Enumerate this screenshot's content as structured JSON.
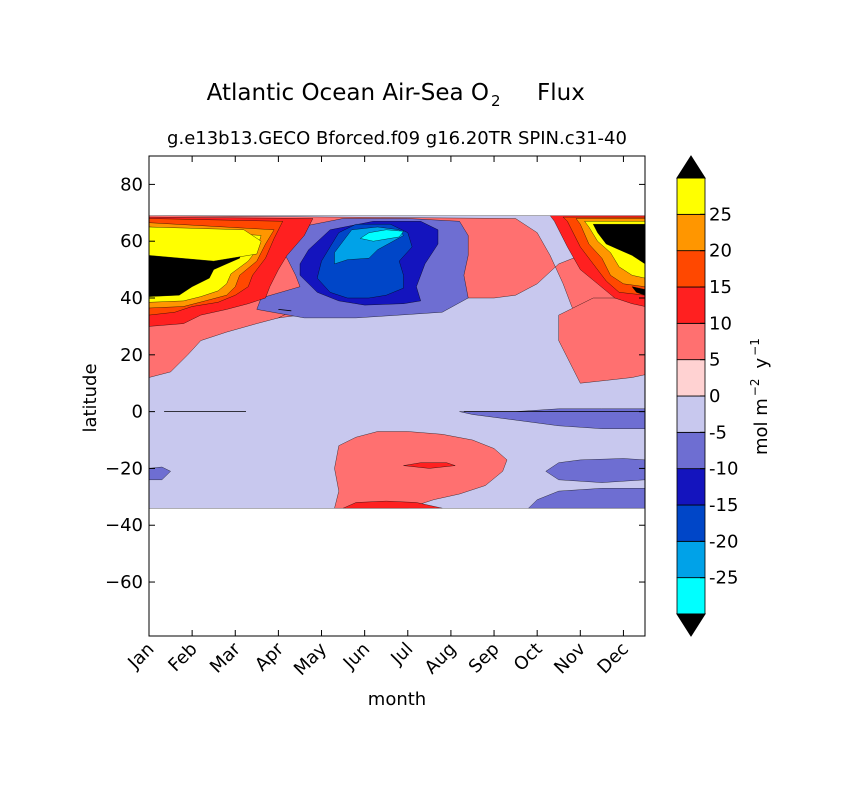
{
  "chart_data": {
    "type": "heatmap",
    "title": "Atlantic Ocean Air-Sea O",
    "title_subscript": "2",
    "title_suffix": "Flux",
    "subtitle": "g.e13b13.GECO Bforced.f09 g16.20TR SPIN.c31-40",
    "xlabel": "month",
    "ylabel": "latitude",
    "x_ticks": [
      "Jan",
      "Feb",
      "Mar",
      "Apr",
      "May",
      "Jun",
      "Jul",
      "Aug",
      "Sep",
      "Oct",
      "Nov",
      "Dec"
    ],
    "y_ticks": [
      "80",
      "60",
      "40",
      "20",
      "0",
      "−20",
      "−40",
      "−60"
    ],
    "y_tick_values": [
      80,
      60,
      40,
      20,
      0,
      -20,
      -40,
      -60
    ],
    "ylim": [
      -79,
      90
    ],
    "data_lat_range": [
      -34,
      69
    ],
    "grid": false,
    "colorbar": {
      "label": "mol m",
      "label_sup1": "−2",
      "label_mid": "y",
      "label_sup2": "−1",
      "levels": [
        -30,
        -25,
        -20,
        -15,
        -10,
        -5,
        0,
        5,
        10,
        15,
        20,
        25,
        30
      ],
      "tick_labels": [
        "-25",
        "-20",
        "-15",
        "-10",
        "-5",
        "0",
        "5",
        "10",
        "15",
        "20",
        "25"
      ],
      "tick_values": [
        -25,
        -20,
        -15,
        -10,
        -5,
        0,
        5,
        10,
        15,
        20,
        25
      ],
      "colors": [
        "#00ffff",
        "#00a2e8",
        "#0046c8",
        "#1414be",
        "#6e6ed2",
        "#c8c8ee",
        "#ffd2d2",
        "#ff7070",
        "#ff2020",
        "#ff4800",
        "#ff9600",
        "#ffff00"
      ],
      "extend_under_color": "#000000",
      "extend_over_color": "#000000"
    },
    "regions": [
      {
        "level": 5,
        "polygon": [
          [
            0,
            24
          ],
          [
            0.5,
            26
          ],
          [
            1,
            27
          ],
          [
            1.5,
            31
          ],
          [
            2.5,
            32
          ],
          [
            3.5,
            34
          ],
          [
            4,
            36
          ],
          [
            4.5,
            39
          ],
          [
            5,
            40
          ],
          [
            7,
            40
          ],
          [
            8,
            40
          ],
          [
            8.5,
            41
          ],
          [
            9,
            45
          ],
          [
            9.5,
            52
          ],
          [
            10,
            55
          ],
          [
            10.6,
            57
          ],
          [
            11.3,
            56
          ],
          [
            11.5,
            50
          ],
          [
            11.5,
            20
          ],
          [
            11,
            25
          ],
          [
            10.5,
            28
          ],
          [
            10,
            32
          ],
          [
            9.8,
            37
          ],
          [
            9.6,
            45
          ],
          [
            9.3,
            55
          ],
          [
            9,
            63
          ],
          [
            8.5,
            68
          ],
          [
            0,
            69
          ],
          [
            0,
            24
          ]
        ]
      },
      {
        "level": 5,
        "polygon": [
          [
            4.3,
            -34
          ],
          [
            4.4,
            -28
          ],
          [
            4.3,
            -20
          ],
          [
            4.4,
            -12
          ],
          [
            4.8,
            -9
          ],
          [
            5.3,
            -7
          ],
          [
            6,
            -7
          ],
          [
            6.8,
            -8
          ],
          [
            7.5,
            -10
          ],
          [
            8,
            -13
          ],
          [
            8.3,
            -17
          ],
          [
            8.2,
            -21
          ],
          [
            7.8,
            -26
          ],
          [
            7.2,
            -29
          ],
          [
            6.6,
            -31
          ],
          [
            6,
            -34
          ]
        ]
      },
      {
        "level": 5,
        "polygon": [
          [
            0,
            12
          ],
          [
            0.5,
            14
          ],
          [
            0.9,
            20
          ],
          [
            1.2,
            25
          ],
          [
            1.8,
            28
          ],
          [
            2.5,
            31
          ],
          [
            3,
            33
          ],
          [
            3.4,
            36
          ],
          [
            3.3,
            40
          ],
          [
            0,
            40
          ]
        ]
      },
      {
        "level": 5,
        "polygon": [
          [
            10,
            10
          ],
          [
            10.6,
            11
          ],
          [
            11.2,
            12
          ],
          [
            11.5,
            13
          ],
          [
            11.5,
            40
          ],
          [
            10.3,
            40
          ],
          [
            9.5,
            34
          ],
          [
            9.5,
            25
          ]
        ]
      },
      {
        "level": 10,
        "polygon": [
          [
            4.5,
            -34
          ],
          [
            4.8,
            -32
          ],
          [
            5.5,
            -31.5
          ],
          [
            6.2,
            -32
          ],
          [
            6.8,
            -34
          ]
        ]
      },
      {
        "level": 10,
        "polygon": [
          [
            5.9,
            -19
          ],
          [
            6.3,
            -18
          ],
          [
            6.9,
            -18
          ],
          [
            7.1,
            -19
          ],
          [
            6.5,
            -20
          ]
        ]
      },
      {
        "level": -5,
        "polygon": [
          [
            0,
            -20
          ],
          [
            0.3,
            -19.5
          ],
          [
            0.5,
            -21
          ],
          [
            0.3,
            -24
          ],
          [
            0,
            -24
          ]
        ]
      },
      {
        "level": -5,
        "polygon": [
          [
            9.5,
            -18
          ],
          [
            10,
            -17
          ],
          [
            11,
            -16.5
          ],
          [
            11.5,
            -17
          ],
          [
            11.5,
            -24
          ],
          [
            10.5,
            -25
          ],
          [
            9.5,
            -24
          ],
          [
            9.2,
            -21
          ]
        ]
      },
      {
        "level": -5,
        "polygon": [
          [
            9,
            -31
          ],
          [
            9.5,
            -28
          ],
          [
            10.5,
            -27
          ],
          [
            11.5,
            -27
          ],
          [
            11.5,
            -34
          ],
          [
            8.8,
            -34
          ]
        ]
      },
      {
        "level": -5,
        "polygon": [
          [
            7.2,
            0
          ],
          [
            8.5,
            0
          ],
          [
            9.5,
            1
          ],
          [
            10.5,
            1
          ],
          [
            11.5,
            1
          ],
          [
            11.5,
            -6
          ],
          [
            10.5,
            -6
          ],
          [
            9.5,
            -5
          ],
          [
            8.5,
            -3
          ],
          [
            7.5,
            -1
          ]
        ]
      },
      {
        "level": -5,
        "polygon": [
          [
            2.8,
            58
          ],
          [
            3.2,
            54
          ],
          [
            3.4,
            48
          ],
          [
            3.5,
            44
          ],
          [
            2.6,
            40
          ],
          [
            2.5,
            36
          ],
          [
            3.6,
            33
          ],
          [
            4.8,
            33
          ],
          [
            5.8,
            34
          ],
          [
            6.8,
            35
          ],
          [
            7.4,
            40
          ],
          [
            7.3,
            48
          ],
          [
            7.4,
            55
          ],
          [
            7.4,
            62
          ],
          [
            7.2,
            67
          ],
          [
            6,
            68
          ],
          [
            4.5,
            68
          ],
          [
            3.5,
            65
          ],
          [
            3,
            62
          ]
        ]
      },
      {
        "level": -10,
        "polygon": [
          [
            3.5,
            48
          ],
          [
            3.9,
            42
          ],
          [
            4.4,
            39
          ],
          [
            5,
            37.5
          ],
          [
            5.9,
            38
          ],
          [
            6.3,
            39
          ],
          [
            6.2,
            44
          ],
          [
            6.4,
            52
          ],
          [
            6.7,
            59
          ],
          [
            6.7,
            64
          ],
          [
            6.3,
            67
          ],
          [
            5.2,
            67
          ],
          [
            4.2,
            64
          ],
          [
            3.7,
            57
          ],
          [
            3.5,
            52
          ]
        ]
      },
      {
        "level": -15,
        "polygon": [
          [
            3.9,
            47
          ],
          [
            4.2,
            42
          ],
          [
            4.6,
            40
          ],
          [
            5.1,
            40
          ],
          [
            5.5,
            41
          ],
          [
            5.9,
            43.5
          ],
          [
            5.9,
            48
          ],
          [
            5.8,
            53
          ],
          [
            6.1,
            58
          ],
          [
            6,
            63
          ],
          [
            5.6,
            66
          ],
          [
            4.8,
            66
          ],
          [
            4.4,
            63
          ],
          [
            4.2,
            58
          ],
          [
            4,
            53
          ]
        ]
      },
      {
        "level": -20,
        "polygon": [
          [
            4.3,
            52
          ],
          [
            4.6,
            53.5
          ],
          [
            5.1,
            54
          ],
          [
            5.3,
            57
          ],
          [
            5.9,
            62
          ],
          [
            5.8,
            64
          ],
          [
            5.3,
            65
          ],
          [
            4.7,
            64
          ],
          [
            4.5,
            60
          ],
          [
            4.3,
            56
          ]
        ]
      },
      {
        "level": -25,
        "polygon": [
          [
            4.9,
            61
          ],
          [
            5.2,
            60
          ],
          [
            5.8,
            61.5
          ],
          [
            5.9,
            63.5
          ],
          [
            5.5,
            64
          ],
          [
            5.1,
            63
          ]
        ]
      },
      {
        "level": 10,
        "polygon": [
          [
            0,
            30
          ],
          [
            0.8,
            31
          ],
          [
            1.2,
            34
          ],
          [
            1.8,
            36
          ],
          [
            2.3,
            38
          ],
          [
            2.7,
            40
          ],
          [
            2.8,
            44
          ],
          [
            3,
            50
          ],
          [
            3.2,
            55
          ],
          [
            3.6,
            62
          ],
          [
            3.8,
            68
          ],
          [
            0,
            68.5
          ]
        ]
      },
      {
        "level": 15,
        "polygon": [
          [
            0,
            34
          ],
          [
            0.6,
            35
          ],
          [
            1,
            37
          ],
          [
            1.6,
            38.5
          ],
          [
            2,
            41
          ],
          [
            2.3,
            44
          ],
          [
            2.4,
            48
          ],
          [
            2.7,
            54
          ],
          [
            2.9,
            61
          ],
          [
            3.1,
            67
          ],
          [
            0,
            68
          ]
        ]
      },
      {
        "level": 20,
        "polygon": [
          [
            0,
            36.5
          ],
          [
            0.8,
            37
          ],
          [
            1.3,
            39
          ],
          [
            1.8,
            41
          ],
          [
            2,
            44
          ],
          [
            2.1,
            48
          ],
          [
            2.5,
            53
          ],
          [
            2.7,
            59
          ],
          [
            2.9,
            64
          ],
          [
            0,
            66.5
          ]
        ]
      },
      {
        "level": 25,
        "polygon": [
          [
            0,
            38.5
          ],
          [
            0.8,
            39
          ],
          [
            1.2,
            40.5
          ],
          [
            1.6,
            42.5
          ],
          [
            1.8,
            45
          ],
          [
            1.9,
            48.5
          ],
          [
            2.3,
            53
          ],
          [
            2.5,
            57
          ],
          [
            2.6,
            62
          ],
          [
            0,
            65
          ]
        ]
      },
      {
        "level": 30,
        "polygon": [
          [
            0,
            40.5
          ],
          [
            0.7,
            41
          ],
          [
            1,
            44
          ],
          [
            1.4,
            47
          ],
          [
            1.5,
            50
          ],
          [
            1.8,
            52
          ],
          [
            2.1,
            54
          ],
          [
            2.2,
            58
          ],
          [
            2.3,
            62
          ],
          [
            0,
            64
          ]
        ]
      },
      {
        "level": 25,
        "polygon": [
          [
            0,
            55
          ],
          [
            1.5,
            53
          ],
          [
            2.5,
            55.5
          ],
          [
            2.6,
            60
          ],
          [
            2.2,
            64
          ],
          [
            0,
            65
          ]
        ]
      },
      {
        "level": 10,
        "polygon": [
          [
            9.4,
            67
          ],
          [
            9.7,
            58
          ],
          [
            10,
            50
          ],
          [
            10.4,
            45
          ],
          [
            10.8,
            40
          ],
          [
            11.2,
            38
          ],
          [
            11.5,
            37
          ],
          [
            11.5,
            69
          ],
          [
            9.3,
            69
          ]
        ]
      },
      {
        "level": 15,
        "polygon": [
          [
            9.7,
            67
          ],
          [
            10,
            58
          ],
          [
            10.3,
            52
          ],
          [
            10.6,
            46
          ],
          [
            10.9,
            42
          ],
          [
            11.5,
            41
          ],
          [
            11.5,
            68.5
          ],
          [
            9.6,
            68.5
          ]
        ]
      },
      {
        "level": 20,
        "polygon": [
          [
            10.0,
            66
          ],
          [
            10.2,
            59
          ],
          [
            10.5,
            54
          ],
          [
            10.7,
            48
          ],
          [
            11,
            45
          ],
          [
            11.5,
            44
          ],
          [
            11.5,
            68
          ],
          [
            9.9,
            68
          ]
        ]
      },
      {
        "level": 25,
        "polygon": [
          [
            10.2,
            65
          ],
          [
            10.4,
            60
          ],
          [
            10.7,
            56
          ],
          [
            10.9,
            51
          ],
          [
            11.2,
            48
          ],
          [
            11.5,
            47
          ],
          [
            11.5,
            67
          ],
          [
            10.1,
            67
          ]
        ]
      },
      {
        "level": 30,
        "polygon": [
          [
            10.4,
            63
          ],
          [
            10.6,
            59
          ],
          [
            10.9,
            57
          ],
          [
            11.2,
            55
          ],
          [
            11.5,
            52
          ],
          [
            11.5,
            66
          ],
          [
            10.3,
            66
          ]
        ]
      },
      {
        "level": 30,
        "polygon": [
          [
            11.2,
            44
          ],
          [
            11.5,
            43
          ],
          [
            11.5,
            41
          ],
          [
            11.3,
            42
          ]
        ]
      }
    ],
    "contour_lines": [
      {
        "level": 0,
        "points": [
          [
            0.35,
            0
          ],
          [
            2.25,
            0
          ]
        ]
      },
      {
        "level": 0,
        "points": [
          [
            7.3,
            0
          ],
          [
            11.5,
            0
          ]
        ]
      },
      {
        "level": -5,
        "points": [
          [
            3.0,
            36
          ],
          [
            3.3,
            35.5
          ]
        ]
      }
    ]
  }
}
